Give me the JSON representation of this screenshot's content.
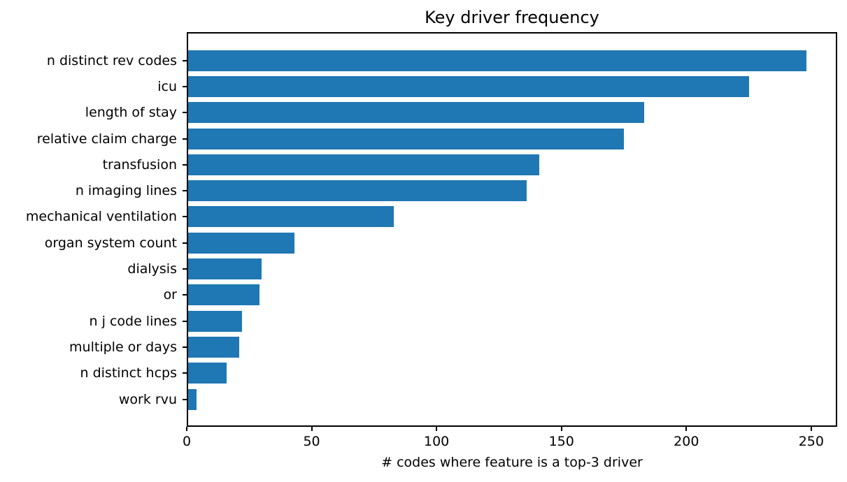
{
  "figure": {
    "background": "#ffffff"
  },
  "chart_data": {
    "type": "bar",
    "orientation": "horizontal",
    "title": "Key driver frequency",
    "xlabel": "# codes where feature is a top-3 driver",
    "ylabel": "",
    "categories": [
      "n distinct rev codes",
      "icu",
      "length of stay",
      "relative claim charge",
      "transfusion",
      "n imaging lines",
      "mechanical ventilation",
      "organ system count",
      "dialysis",
      "or",
      "n j code lines",
      "multiple or days",
      "n distinct hcps",
      "work rvu"
    ],
    "values": [
      248,
      225,
      183,
      175,
      141,
      136,
      83,
      43,
      30,
      29,
      22,
      21,
      16,
      4
    ],
    "xticks": [
      0,
      50,
      100,
      150,
      200,
      250
    ],
    "xlim": [
      0,
      260.4
    ],
    "bar_color": "#1f77b4",
    "axis_color": "#000000",
    "text_color": "#000000",
    "grid": false,
    "legend_position": "none"
  }
}
